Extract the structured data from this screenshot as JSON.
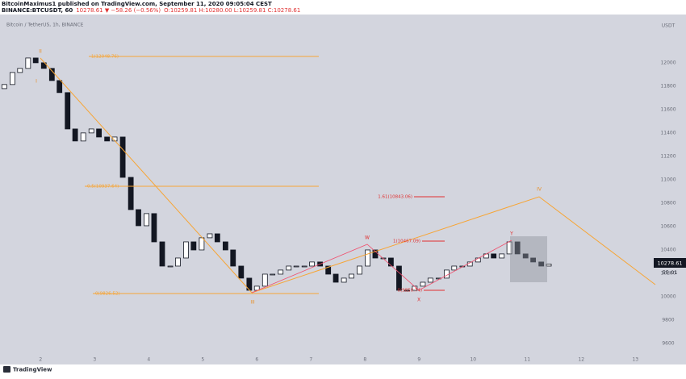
{
  "header": {
    "author": "BitcoinMaximus1 published on TradingView.com, September 11, 2020 09:05:04 CEST",
    "symbol": "BINANCE:BTCUSDT, 60",
    "price": "10278.61 ▼ −58.26 (−0.56%)",
    "ohlc": "O:10259.81 H:10280.00 L:10259.81 C:10278.61"
  },
  "chart_data": {
    "type": "candlestick",
    "title": "Bitcoin / TetherUS, 1h, BINANCE",
    "y_axis_label": "USDT",
    "x": [
      1.33,
      1.48,
      1.62,
      1.77,
      1.91,
      2.06,
      2.21,
      2.35,
      2.5,
      2.64,
      2.79,
      2.94,
      3.08,
      3.23,
      3.37,
      3.52,
      3.67,
      3.81,
      3.96,
      4.1,
      4.25,
      4.4,
      4.54,
      4.69,
      4.83,
      4.98,
      5.13,
      5.27,
      5.42,
      5.56,
      5.71,
      5.86,
      6.0,
      6.15,
      6.29,
      6.44,
      6.59,
      6.73,
      6.88,
      7.02,
      7.17,
      7.32,
      7.46,
      7.61,
      7.75,
      7.9,
      8.05,
      8.19,
      8.34,
      8.48,
      8.63,
      8.78,
      8.92,
      9.07,
      9.21,
      9.36,
      9.51,
      9.65,
      9.8,
      9.94,
      10.09,
      10.24,
      10.38,
      10.53,
      10.67,
      10.82,
      10.97,
      11.11,
      11.26,
      11.4
    ],
    "open": [
      11780,
      11815,
      11918,
      11953,
      12042,
      12001,
      11953,
      11849,
      11746,
      11435,
      11332,
      11401,
      11435,
      11366,
      11332,
      11366,
      11021,
      10745,
      10607,
      10711,
      10469,
      10262,
      10262,
      10331,
      10469,
      10400,
      10504,
      10538,
      10469,
      10400,
      10262,
      10159,
      10055,
      10090,
      10193,
      10193,
      10228,
      10262,
      10262,
      10262,
      10297,
      10262,
      10193,
      10124,
      10159,
      10193,
      10262,
      10400,
      10331,
      10331,
      10262,
      10055,
      10055,
      10090,
      10124,
      10159,
      10159,
      10228,
      10262,
      10262,
      10297,
      10331,
      10366,
      10331,
      10366,
      10469,
      10366,
      10331,
      10297,
      10262
    ],
    "close": [
      11815,
      11918,
      11953,
      12042,
      12001,
      11953,
      11849,
      11746,
      11435,
      11332,
      11401,
      11435,
      11366,
      11332,
      11366,
      11021,
      10745,
      10607,
      10711,
      10469,
      10262,
      10262,
      10331,
      10469,
      10400,
      10504,
      10538,
      10469,
      10400,
      10262,
      10159,
      10055,
      10090,
      10193,
      10193,
      10228,
      10262,
      10262,
      10262,
      10297,
      10262,
      10193,
      10124,
      10159,
      10193,
      10262,
      10400,
      10331,
      10331,
      10262,
      10055,
      10055,
      10090,
      10124,
      10159,
      10159,
      10228,
      10262,
      10262,
      10297,
      10331,
      10366,
      10331,
      10366,
      10469,
      10366,
      10331,
      10297,
      10262,
      10279
    ],
    "xlim": [
      1.25,
      13.31
    ],
    "xticks": [
      2,
      3,
      4,
      5,
      6,
      7,
      8,
      9,
      10,
      11,
      12,
      13
    ],
    "ylim": [
      9503,
      12414
    ],
    "yticks": [
      9600,
      9800,
      10000,
      10200,
      10400,
      10600,
      10800,
      11000,
      11200,
      11400,
      11600,
      11800,
      12000
    ],
    "last_price_label": "10278.61",
    "countdown": "55:01",
    "fib_main": [
      "1(12048.76)",
      "0.5(10937.64)",
      "0(9826.52)"
    ],
    "fib_corrective": [
      "1.61(10843.06)",
      "1(10467.09)",
      "0(9850.74)"
    ],
    "waves_main": [
      "II",
      "I",
      "III",
      "IV"
    ],
    "waves_corrective": [
      "W",
      "X",
      "Y"
    ]
  },
  "footer": {
    "brand": "TradingView"
  }
}
